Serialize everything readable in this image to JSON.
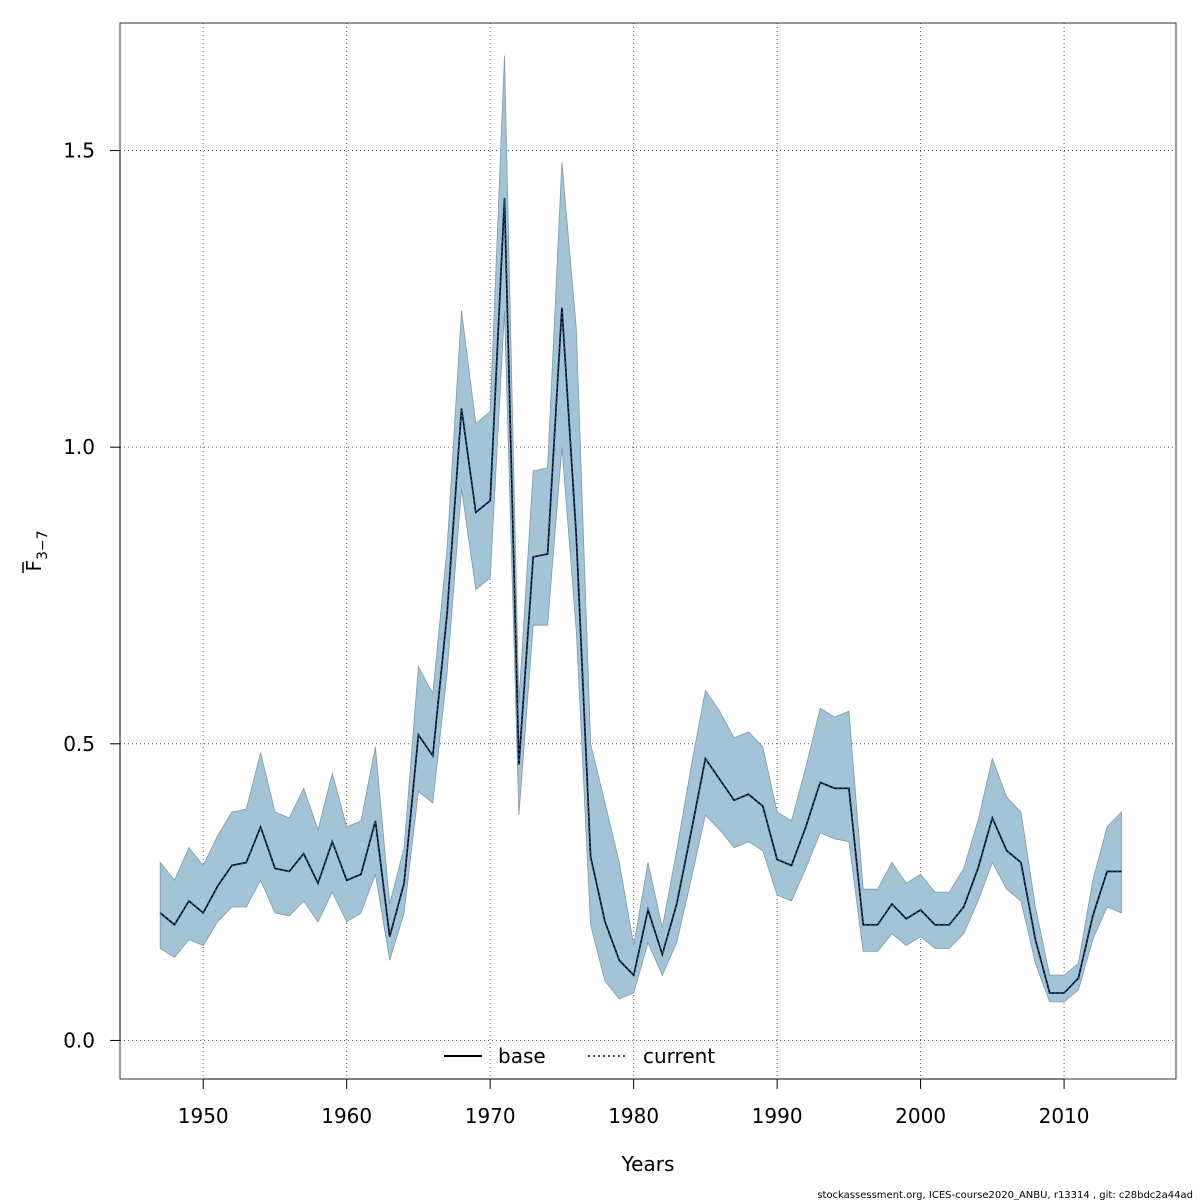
{
  "chart_data": {
    "type": "line",
    "xlabel": "Years",
    "ylabel_main": "F",
    "ylabel_sub": "3−7",
    "xlim": [
      1944.2,
      2017.8
    ],
    "ylim": [
      -0.065,
      1.715
    ],
    "x_ticks": [
      1950,
      1960,
      1970,
      1980,
      1990,
      2000,
      2010
    ],
    "y_ticks": [
      0.0,
      0.5,
      1.0,
      1.5
    ],
    "y_tick_labels": [
      "0.0",
      "0.5",
      "1.0",
      "1.5"
    ],
    "grid": true,
    "legend_position": "bottom-center",
    "years": [
      1947,
      1948,
      1949,
      1950,
      1951,
      1952,
      1953,
      1954,
      1955,
      1956,
      1957,
      1958,
      1959,
      1960,
      1961,
      1962,
      1963,
      1964,
      1965,
      1966,
      1967,
      1968,
      1969,
      1970,
      1971,
      1972,
      1973,
      1974,
      1975,
      1976,
      1977,
      1978,
      1979,
      1980,
      1981,
      1982,
      1983,
      1984,
      1985,
      1986,
      1987,
      1988,
      1989,
      1990,
      1991,
      1992,
      1993,
      1994,
      1995,
      1996,
      1997,
      1998,
      1999,
      2000,
      2001,
      2002,
      2003,
      2004,
      2005,
      2006,
      2007,
      2008,
      2009,
      2010,
      2011,
      2012,
      2013,
      2014
    ],
    "series": [
      {
        "name": "base",
        "style": "solid",
        "color": "#000000",
        "values": [
          0.215,
          0.195,
          0.235,
          0.215,
          0.26,
          0.295,
          0.3,
          0.36,
          0.29,
          0.285,
          0.315,
          0.265,
          0.335,
          0.27,
          0.28,
          0.37,
          0.175,
          0.265,
          0.515,
          0.48,
          0.72,
          1.065,
          0.89,
          0.91,
          1.42,
          0.465,
          0.815,
          0.82,
          1.235,
          0.85,
          0.31,
          0.2,
          0.135,
          0.11,
          0.22,
          0.145,
          0.23,
          0.35,
          0.475,
          0.44,
          0.405,
          0.415,
          0.395,
          0.305,
          0.295,
          0.36,
          0.435,
          0.425,
          0.425,
          0.195,
          0.195,
          0.23,
          0.205,
          0.22,
          0.195,
          0.195,
          0.225,
          0.29,
          0.375,
          0.32,
          0.3,
          0.17,
          0.08,
          0.08,
          0.105,
          0.21,
          0.285,
          0.285
        ]
      },
      {
        "name": "current",
        "style": "dotted",
        "color": "#1f4f8f",
        "values": [
          0.215,
          0.195,
          0.235,
          0.215,
          0.26,
          0.295,
          0.3,
          0.36,
          0.29,
          0.285,
          0.315,
          0.265,
          0.335,
          0.27,
          0.28,
          0.37,
          0.175,
          0.265,
          0.515,
          0.48,
          0.72,
          1.065,
          0.89,
          0.91,
          1.42,
          0.465,
          0.815,
          0.82,
          1.235,
          0.85,
          0.31,
          0.2,
          0.135,
          0.11,
          0.22,
          0.145,
          0.23,
          0.35,
          0.475,
          0.44,
          0.405,
          0.415,
          0.395,
          0.305,
          0.295,
          0.36,
          0.435,
          0.425,
          0.425,
          0.195,
          0.195,
          0.23,
          0.205,
          0.22,
          0.195,
          0.195,
          0.225,
          0.29,
          0.375,
          0.32,
          0.3,
          0.17,
          0.08,
          0.08,
          0.105,
          0.21,
          0.285,
          0.285
        ]
      }
    ],
    "band": {
      "color": "#a3c4d6",
      "lower": [
        0.155,
        0.14,
        0.17,
        0.16,
        0.2,
        0.225,
        0.225,
        0.27,
        0.215,
        0.21,
        0.235,
        0.2,
        0.25,
        0.2,
        0.215,
        0.28,
        0.135,
        0.215,
        0.42,
        0.4,
        0.62,
        0.93,
        0.76,
        0.78,
        1.23,
        0.38,
        0.7,
        0.7,
        1.0,
        0.69,
        0.195,
        0.1,
        0.07,
        0.08,
        0.165,
        0.11,
        0.165,
        0.27,
        0.38,
        0.355,
        0.325,
        0.335,
        0.32,
        0.245,
        0.235,
        0.29,
        0.35,
        0.34,
        0.335,
        0.15,
        0.15,
        0.18,
        0.16,
        0.175,
        0.155,
        0.155,
        0.18,
        0.235,
        0.3,
        0.255,
        0.235,
        0.13,
        0.065,
        0.065,
        0.085,
        0.17,
        0.225,
        0.215
      ],
      "upper": [
        0.3,
        0.27,
        0.325,
        0.295,
        0.345,
        0.385,
        0.39,
        0.485,
        0.385,
        0.375,
        0.425,
        0.355,
        0.45,
        0.36,
        0.37,
        0.495,
        0.23,
        0.325,
        0.63,
        0.585,
        0.83,
        1.23,
        1.04,
        1.06,
        1.66,
        0.57,
        0.96,
        0.965,
        1.48,
        1.2,
        0.5,
        0.4,
        0.3,
        0.16,
        0.3,
        0.19,
        0.32,
        0.46,
        0.59,
        0.555,
        0.51,
        0.52,
        0.495,
        0.385,
        0.37,
        0.46,
        0.56,
        0.545,
        0.555,
        0.255,
        0.255,
        0.3,
        0.265,
        0.28,
        0.25,
        0.25,
        0.29,
        0.37,
        0.475,
        0.41,
        0.385,
        0.225,
        0.11,
        0.11,
        0.13,
        0.27,
        0.36,
        0.385
      ]
    }
  },
  "footer": {
    "credit": "stockassessment.org, ICES-course2020_ANBU, r13314 , git: c28bdc2a44ad"
  }
}
